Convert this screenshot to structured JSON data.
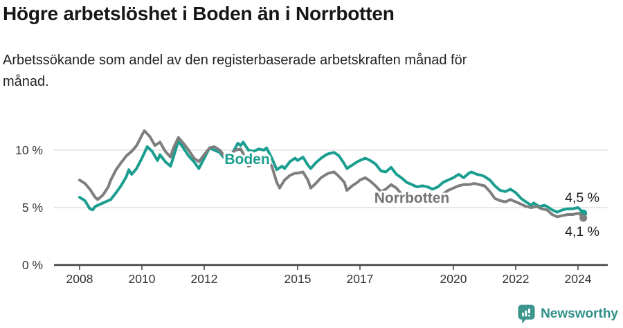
{
  "header": {
    "title": "Högre arbetslöshet i Boden än i Norrbotten",
    "subtitle": "Arbetssökande som andel av den registerbaserade arbetskraften månad för månad."
  },
  "footer": {
    "brand": "Newsworthy",
    "brand_color": "#2F8F88",
    "logo_color": "#3C968E"
  },
  "colors": {
    "grid": "#DBDBDB",
    "axis": "#3D3D3D",
    "tick_text": "#333333",
    "value_label_text": "#1A1A1A"
  },
  "chart_data": {
    "type": "line",
    "title": "Högre arbetslöshet i Boden än i Norrbotten",
    "subtitle": "Arbetssökande som andel av den registerbaserade arbetskraften månad för månad.",
    "xlabel": "",
    "ylabel": "",
    "unit": "%",
    "xlim": [
      2007.2,
      2024.95
    ],
    "ylim": [
      0,
      12
    ],
    "grid": "horizontal",
    "legend_position": "inline-labels",
    "x_ticks": [
      {
        "year": 2008,
        "label": "2008"
      },
      {
        "year": 2010,
        "label": "2010"
      },
      {
        "year": 2012,
        "label": "2012"
      },
      {
        "year": 2015,
        "label": "2015"
      },
      {
        "year": 2017,
        "label": "2017"
      },
      {
        "year": 2020,
        "label": "2020"
      },
      {
        "year": 2022,
        "label": "2022"
      },
      {
        "year": 2024,
        "label": "2024"
      }
    ],
    "y_ticks": [
      {
        "value": 0,
        "label": "0 %"
      },
      {
        "value": 5,
        "label": "5 %"
      },
      {
        "value": 10,
        "label": "10 %"
      }
    ],
    "series": [
      {
        "name": "Boden",
        "color": "#1A9E8F",
        "label_color": "#1A9E8F",
        "end_value": 4.5,
        "end_label": "4,5 %",
        "points": [
          [
            2008.0,
            5.9
          ],
          [
            2008.17,
            5.6
          ],
          [
            2008.33,
            4.9
          ],
          [
            2008.42,
            4.8
          ],
          [
            2008.5,
            5.1
          ],
          [
            2008.67,
            5.3
          ],
          [
            2008.83,
            5.5
          ],
          [
            2009.0,
            5.7
          ],
          [
            2009.17,
            6.3
          ],
          [
            2009.33,
            6.9
          ],
          [
            2009.5,
            7.7
          ],
          [
            2009.58,
            8.3
          ],
          [
            2009.67,
            7.9
          ],
          [
            2009.83,
            8.4
          ],
          [
            2010.0,
            9.3
          ],
          [
            2010.17,
            10.3
          ],
          [
            2010.33,
            9.9
          ],
          [
            2010.5,
            9.1
          ],
          [
            2010.58,
            9.6
          ],
          [
            2010.75,
            9.0
          ],
          [
            2010.92,
            8.6
          ],
          [
            2011.0,
            9.3
          ],
          [
            2011.17,
            10.8
          ],
          [
            2011.33,
            10.2
          ],
          [
            2011.5,
            9.5
          ],
          [
            2011.67,
            9.0
          ],
          [
            2011.83,
            8.4
          ],
          [
            2012.0,
            9.3
          ],
          [
            2012.17,
            10.2
          ],
          [
            2012.33,
            10.0
          ],
          [
            2012.5,
            9.8
          ],
          [
            2012.67,
            9.2
          ],
          [
            2012.83,
            9.4
          ],
          [
            2013.0,
            10.2
          ],
          [
            2013.08,
            10.6
          ],
          [
            2013.17,
            10.4
          ],
          [
            2013.25,
            10.7
          ],
          [
            2013.42,
            10.0
          ],
          [
            2013.58,
            9.9
          ],
          [
            2013.75,
            10.1
          ],
          [
            2013.92,
            10.0
          ],
          [
            2014.0,
            10.2
          ],
          [
            2014.17,
            9.3
          ],
          [
            2014.33,
            8.3
          ],
          [
            2014.5,
            8.6
          ],
          [
            2014.58,
            8.4
          ],
          [
            2014.75,
            9.0
          ],
          [
            2014.92,
            9.3
          ],
          [
            2015.0,
            9.1
          ],
          [
            2015.17,
            9.4
          ],
          [
            2015.33,
            8.7
          ],
          [
            2015.42,
            8.4
          ],
          [
            2015.58,
            8.9
          ],
          [
            2015.75,
            9.3
          ],
          [
            2015.92,
            9.6
          ],
          [
            2016.0,
            9.7
          ],
          [
            2016.17,
            9.8
          ],
          [
            2016.33,
            9.5
          ],
          [
            2016.5,
            8.8
          ],
          [
            2016.58,
            8.4
          ],
          [
            2016.75,
            8.7
          ],
          [
            2016.92,
            9.0
          ],
          [
            2017.0,
            9.1
          ],
          [
            2017.17,
            9.3
          ],
          [
            2017.33,
            9.1
          ],
          [
            2017.5,
            8.8
          ],
          [
            2017.67,
            8.2
          ],
          [
            2017.83,
            8.1
          ],
          [
            2018.0,
            8.5
          ],
          [
            2018.17,
            7.9
          ],
          [
            2018.33,
            7.6
          ],
          [
            2018.5,
            7.2
          ],
          [
            2018.67,
            7.0
          ],
          [
            2018.83,
            6.8
          ],
          [
            2019.0,
            6.9
          ],
          [
            2019.17,
            6.8
          ],
          [
            2019.33,
            6.6
          ],
          [
            2019.5,
            6.8
          ],
          [
            2019.67,
            7.2
          ],
          [
            2019.83,
            7.4
          ],
          [
            2020.0,
            7.6
          ],
          [
            2020.17,
            7.9
          ],
          [
            2020.33,
            7.6
          ],
          [
            2020.5,
            8.0
          ],
          [
            2020.58,
            8.1
          ],
          [
            2020.75,
            7.9
          ],
          [
            2020.92,
            7.8
          ],
          [
            2021.0,
            7.7
          ],
          [
            2021.17,
            7.4
          ],
          [
            2021.33,
            6.9
          ],
          [
            2021.5,
            6.5
          ],
          [
            2021.67,
            6.4
          ],
          [
            2021.83,
            6.6
          ],
          [
            2022.0,
            6.3
          ],
          [
            2022.17,
            5.8
          ],
          [
            2022.33,
            5.5
          ],
          [
            2022.5,
            5.2
          ],
          [
            2022.58,
            5.4
          ],
          [
            2022.75,
            5.1
          ],
          [
            2022.92,
            5.2
          ],
          [
            2023.0,
            5.1
          ],
          [
            2023.17,
            4.8
          ],
          [
            2023.33,
            4.6
          ],
          [
            2023.5,
            4.8
          ],
          [
            2023.67,
            4.9
          ],
          [
            2023.83,
            4.9
          ],
          [
            2024.0,
            5.0
          ],
          [
            2024.08,
            4.8
          ],
          [
            2024.17,
            4.5
          ]
        ]
      },
      {
        "name": "Norrbotten",
        "color": "#7E7E7E",
        "label_color": "#737373",
        "end_value": 4.1,
        "end_label": "4,1 %",
        "points": [
          [
            2008.0,
            7.4
          ],
          [
            2008.17,
            7.1
          ],
          [
            2008.33,
            6.6
          ],
          [
            2008.5,
            5.9
          ],
          [
            2008.58,
            5.7
          ],
          [
            2008.75,
            6.1
          ],
          [
            2008.92,
            6.8
          ],
          [
            2009.0,
            7.4
          ],
          [
            2009.17,
            8.3
          ],
          [
            2009.33,
            8.9
          ],
          [
            2009.5,
            9.5
          ],
          [
            2009.67,
            9.9
          ],
          [
            2009.83,
            10.4
          ],
          [
            2010.0,
            11.3
          ],
          [
            2010.08,
            11.7
          ],
          [
            2010.25,
            11.2
          ],
          [
            2010.42,
            10.4
          ],
          [
            2010.58,
            10.7
          ],
          [
            2010.75,
            9.9
          ],
          [
            2010.92,
            9.4
          ],
          [
            2011.0,
            10.1
          ],
          [
            2011.17,
            11.1
          ],
          [
            2011.33,
            10.6
          ],
          [
            2011.5,
            10.0
          ],
          [
            2011.67,
            9.3
          ],
          [
            2011.83,
            9.0
          ],
          [
            2012.0,
            9.6
          ],
          [
            2012.17,
            10.2
          ],
          [
            2012.33,
            10.3
          ],
          [
            2012.5,
            10.0
          ],
          [
            2012.67,
            9.4
          ],
          [
            2012.83,
            9.6
          ],
          [
            2013.0,
            10.0
          ],
          [
            2013.17,
            10.1
          ],
          [
            2013.33,
            9.3
          ],
          [
            2013.42,
            8.6
          ],
          [
            2013.58,
            8.8
          ],
          [
            2013.75,
            9.1
          ],
          [
            2013.92,
            9.2
          ],
          [
            2014.0,
            9.3
          ],
          [
            2014.17,
            8.6
          ],
          [
            2014.33,
            7.2
          ],
          [
            2014.42,
            6.7
          ],
          [
            2014.58,
            7.4
          ],
          [
            2014.75,
            7.8
          ],
          [
            2014.92,
            8.0
          ],
          [
            2015.0,
            8.0
          ],
          [
            2015.17,
            8.1
          ],
          [
            2015.33,
            7.4
          ],
          [
            2015.42,
            6.7
          ],
          [
            2015.58,
            7.1
          ],
          [
            2015.75,
            7.6
          ],
          [
            2015.92,
            7.9
          ],
          [
            2016.0,
            8.0
          ],
          [
            2016.17,
            8.1
          ],
          [
            2016.33,
            7.7
          ],
          [
            2016.5,
            7.2
          ],
          [
            2016.58,
            6.5
          ],
          [
            2016.75,
            6.9
          ],
          [
            2016.92,
            7.2
          ],
          [
            2017.0,
            7.4
          ],
          [
            2017.17,
            7.6
          ],
          [
            2017.33,
            7.3
          ],
          [
            2017.5,
            6.9
          ],
          [
            2017.67,
            6.4
          ],
          [
            2017.83,
            6.6
          ],
          [
            2018.0,
            7.0
          ],
          [
            2018.17,
            6.7
          ],
          [
            2018.33,
            6.2
          ],
          [
            2018.5,
            5.7
          ],
          [
            2018.67,
            5.5
          ],
          [
            2018.83,
            5.8
          ],
          [
            2019.0,
            6.0
          ],
          [
            2019.17,
            5.9
          ],
          [
            2019.33,
            5.5
          ],
          [
            2019.5,
            5.7
          ],
          [
            2019.67,
            6.2
          ],
          [
            2019.83,
            6.5
          ],
          [
            2020.0,
            6.7
          ],
          [
            2020.17,
            6.9
          ],
          [
            2020.33,
            7.0
          ],
          [
            2020.5,
            7.0
          ],
          [
            2020.67,
            7.1
          ],
          [
            2020.83,
            7.0
          ],
          [
            2021.0,
            6.9
          ],
          [
            2021.17,
            6.4
          ],
          [
            2021.33,
            5.8
          ],
          [
            2021.5,
            5.6
          ],
          [
            2021.67,
            5.5
          ],
          [
            2021.83,
            5.7
          ],
          [
            2022.0,
            5.5
          ],
          [
            2022.17,
            5.3
          ],
          [
            2022.33,
            5.1
          ],
          [
            2022.5,
            5.0
          ],
          [
            2022.67,
            5.1
          ],
          [
            2022.83,
            4.9
          ],
          [
            2023.0,
            4.8
          ],
          [
            2023.17,
            4.4
          ],
          [
            2023.33,
            4.2
          ],
          [
            2023.5,
            4.3
          ],
          [
            2023.67,
            4.4
          ],
          [
            2023.83,
            4.4
          ],
          [
            2024.0,
            4.5
          ],
          [
            2024.08,
            4.4
          ],
          [
            2024.17,
            4.1
          ]
        ]
      }
    ]
  }
}
